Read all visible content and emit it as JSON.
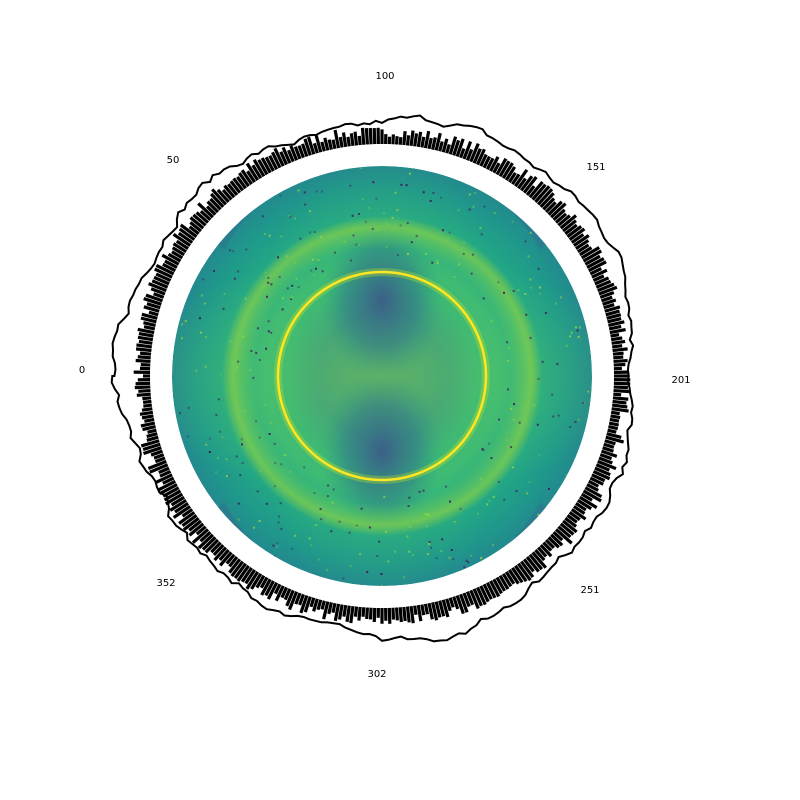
{
  "chart_data": {
    "type": "heatmap",
    "projection": "polar",
    "title": "",
    "xlabel": "",
    "ylabel": "",
    "angular_tick_labels": [
      "0",
      "50",
      "100",
      "151",
      "201",
      "251",
      "302",
      "352"
    ],
    "angular_range": [
      0,
      400
    ],
    "grid": false,
    "legend": "none",
    "layers": [
      {
        "kind": "heatmap",
        "colormap": "viridis",
        "feature": "bright ring near half radius with two lobed darker regions through the center"
      },
      {
        "kind": "radial-bars",
        "color": "#000000",
        "count": 400
      },
      {
        "kind": "outer-line-profile",
        "color": "#000000"
      }
    ],
    "colors": {
      "viridis_dark": "#440154",
      "viridis_mid": "#21918c",
      "viridis_green": "#5ec962",
      "viridis_yellow": "#fde725",
      "marks": "#000000"
    }
  }
}
